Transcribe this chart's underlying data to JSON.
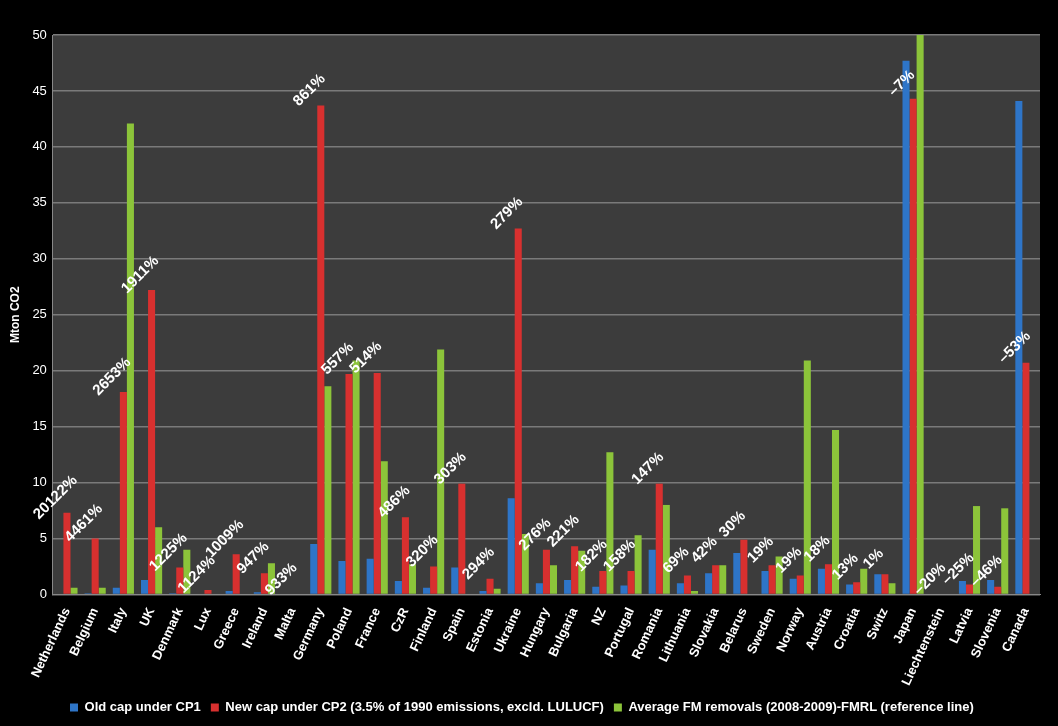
{
  "chart_data": {
    "type": "bar",
    "ylabel": "Mton CO2",
    "categories": [
      "Netherlands",
      "Belgium",
      "Italy",
      "UK",
      "Denmark",
      "Lux",
      "Greece",
      "Ireland",
      "Malta",
      "Germany",
      "Poland",
      "France",
      "CzR",
      "Finland",
      "Spain",
      "Estonia",
      "Ukraine",
      "Hungary",
      "Bulgaria",
      "NZ",
      "Portugal",
      "Romania",
      "Lithuania",
      "Slovakia",
      "Belarus",
      "Sweden",
      "Norway",
      "Austria",
      "Croatia",
      "Switz",
      "Japan",
      "Liechtenstein",
      "Latvia",
      "Slovenia",
      "Canada"
    ],
    "series": [
      {
        "name": "Old cap under CP1",
        "color": "#2e75c8",
        "values": [
          0,
          0.1,
          0.6,
          1.3,
          0.1,
          0,
          0.3,
          0.2,
          0,
          4.5,
          3.0,
          3.2,
          1.2,
          0.6,
          2.4,
          0.3,
          8.6,
          1.0,
          1.3,
          0.7,
          0.8,
          4.0,
          1.0,
          1.9,
          3.7,
          2.1,
          1.4,
          2.3,
          0.9,
          1.8,
          47.7,
          0,
          1.2,
          1.3,
          44.1
        ]
      },
      {
        "name": "New cap under CP2 (3.5% of 1990 emissions, excld. LULUCF)",
        "color": "#d8302f",
        "values": [
          7.3,
          5.0,
          18.1,
          27.2,
          2.4,
          0.4,
          3.6,
          1.9,
          0,
          43.7,
          19.7,
          19.8,
          6.9,
          2.5,
          9.9,
          1.4,
          32.7,
          4.0,
          4.3,
          2.1,
          2.1,
          9.9,
          1.7,
          2.6,
          4.9,
          2.6,
          1.7,
          2.7,
          1.1,
          1.8,
          44.3,
          0,
          0.9,
          0.7,
          20.7
        ]
      },
      {
        "name": "Average FM removals (2008-2009)-FMRL (reference line)",
        "color": "#8cc43a",
        "values": [
          0.6,
          0.6,
          42.1,
          6.0,
          4.0,
          0,
          0,
          2.8,
          0,
          18.6,
          20.9,
          11.9,
          2.7,
          21.9,
          0,
          0.5,
          5.4,
          2.6,
          3.9,
          12.7,
          5.3,
          8.0,
          0.3,
          2.6,
          0,
          3.4,
          20.9,
          14.7,
          2.3,
          1.0,
          50,
          0,
          7.9,
          7.7,
          0
        ]
      }
    ],
    "annotations": [
      {
        "text": "20122%",
        "x": "Netherlands",
        "y": 7.3
      },
      {
        "text": "4461%",
        "x": "Belgium",
        "y": 5.0
      },
      {
        "text": "2653%",
        "x": "Italy",
        "y": 18.1
      },
      {
        "text": "1911%",
        "x": "UK",
        "y": 27.2
      },
      {
        "text": "1225%",
        "x": "Denmark",
        "y": 2.4
      },
      {
        "text": "1124%",
        "x": "Lux",
        "y": 0.4
      },
      {
        "text": "1009%",
        "x": "Greece",
        "y": 3.6
      },
      {
        "text": "947%",
        "x": "Ireland",
        "y": 1.9
      },
      {
        "text": "933%",
        "x": "Malta",
        "y": 0
      },
      {
        "text": "861%",
        "x": "Germany",
        "y": 43.7
      },
      {
        "text": "557%",
        "x": "Poland",
        "y": 19.7
      },
      {
        "text": "514%",
        "x": "France",
        "y": 19.8
      },
      {
        "text": "486%",
        "x": "CzR",
        "y": 6.9
      },
      {
        "text": "320%",
        "x": "Finland",
        "y": 2.5
      },
      {
        "text": "303%",
        "x": "Spain",
        "y": 9.9
      },
      {
        "text": "294%",
        "x": "Estonia",
        "y": 1.4
      },
      {
        "text": "279%",
        "x": "Ukraine",
        "y": 32.7
      },
      {
        "text": "276%",
        "x": "Hungary",
        "y": 4.0
      },
      {
        "text": "221%",
        "x": "Bulgaria",
        "y": 4.3
      },
      {
        "text": "182%",
        "x": "NZ",
        "y": 2.1
      },
      {
        "text": "158%",
        "x": "Portugal",
        "y": 2.1
      },
      {
        "text": "147%",
        "x": "Romania",
        "y": 9.9
      },
      {
        "text": "69%",
        "x": "Lithuania",
        "y": 1.7
      },
      {
        "text": "42%",
        "x": "Slovakia",
        "y": 2.6
      },
      {
        "text": "30%",
        "x": "Belarus",
        "y": 4.9
      },
      {
        "text": "19%",
        "x": "Sweden",
        "y": 2.6
      },
      {
        "text": "19%",
        "x": "Norway",
        "y": 1.7
      },
      {
        "text": "18%",
        "x": "Austria",
        "y": 2.7
      },
      {
        "text": "13%",
        "x": "Croatia",
        "y": 1.1
      },
      {
        "text": "1%",
        "x": "Switz",
        "y": 1.8
      },
      {
        "text": "–7%",
        "x": "Japan",
        "y": 44.3
      },
      {
        "text": "–20%",
        "x": "Liechtenstein",
        "y": 0
      },
      {
        "text": "–25%",
        "x": "Latvia",
        "y": 0.9
      },
      {
        "text": "–46%",
        "x": "Slovenia",
        "y": 0.7
      },
      {
        "text": "–53%",
        "x": "Canada",
        "y": 20.7
      }
    ],
    "ylim": [
      0,
      50
    ],
    "yticks": [
      0,
      5,
      10,
      15,
      20,
      25,
      30,
      35,
      40,
      45,
      50
    ],
    "grid": "y",
    "legend": "bottom"
  }
}
